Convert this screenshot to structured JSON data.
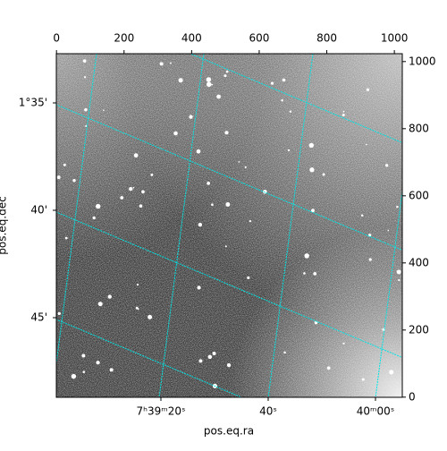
{
  "chart_data": {
    "type": "image",
    "xlabel": "pos.eq.ra",
    "ylabel": "pos.eq.dec",
    "xlim": [
      -0.5,
      1023.5
    ],
    "ylim": [
      -0.5,
      1023.5
    ],
    "xticks": [
      0,
      200,
      400,
      600,
      800,
      1000
    ],
    "yticks": [
      0,
      200,
      400,
      600,
      800,
      1000
    ],
    "ra_ticks": [
      "7ʰ39ᵐ20ˢ",
      "40ˢ",
      "40ᵐ00ˢ"
    ],
    "dec_ticks": [
      "1°35'",
      "40'",
      "45'"
    ],
    "grid_color": "#00e5e5"
  }
}
